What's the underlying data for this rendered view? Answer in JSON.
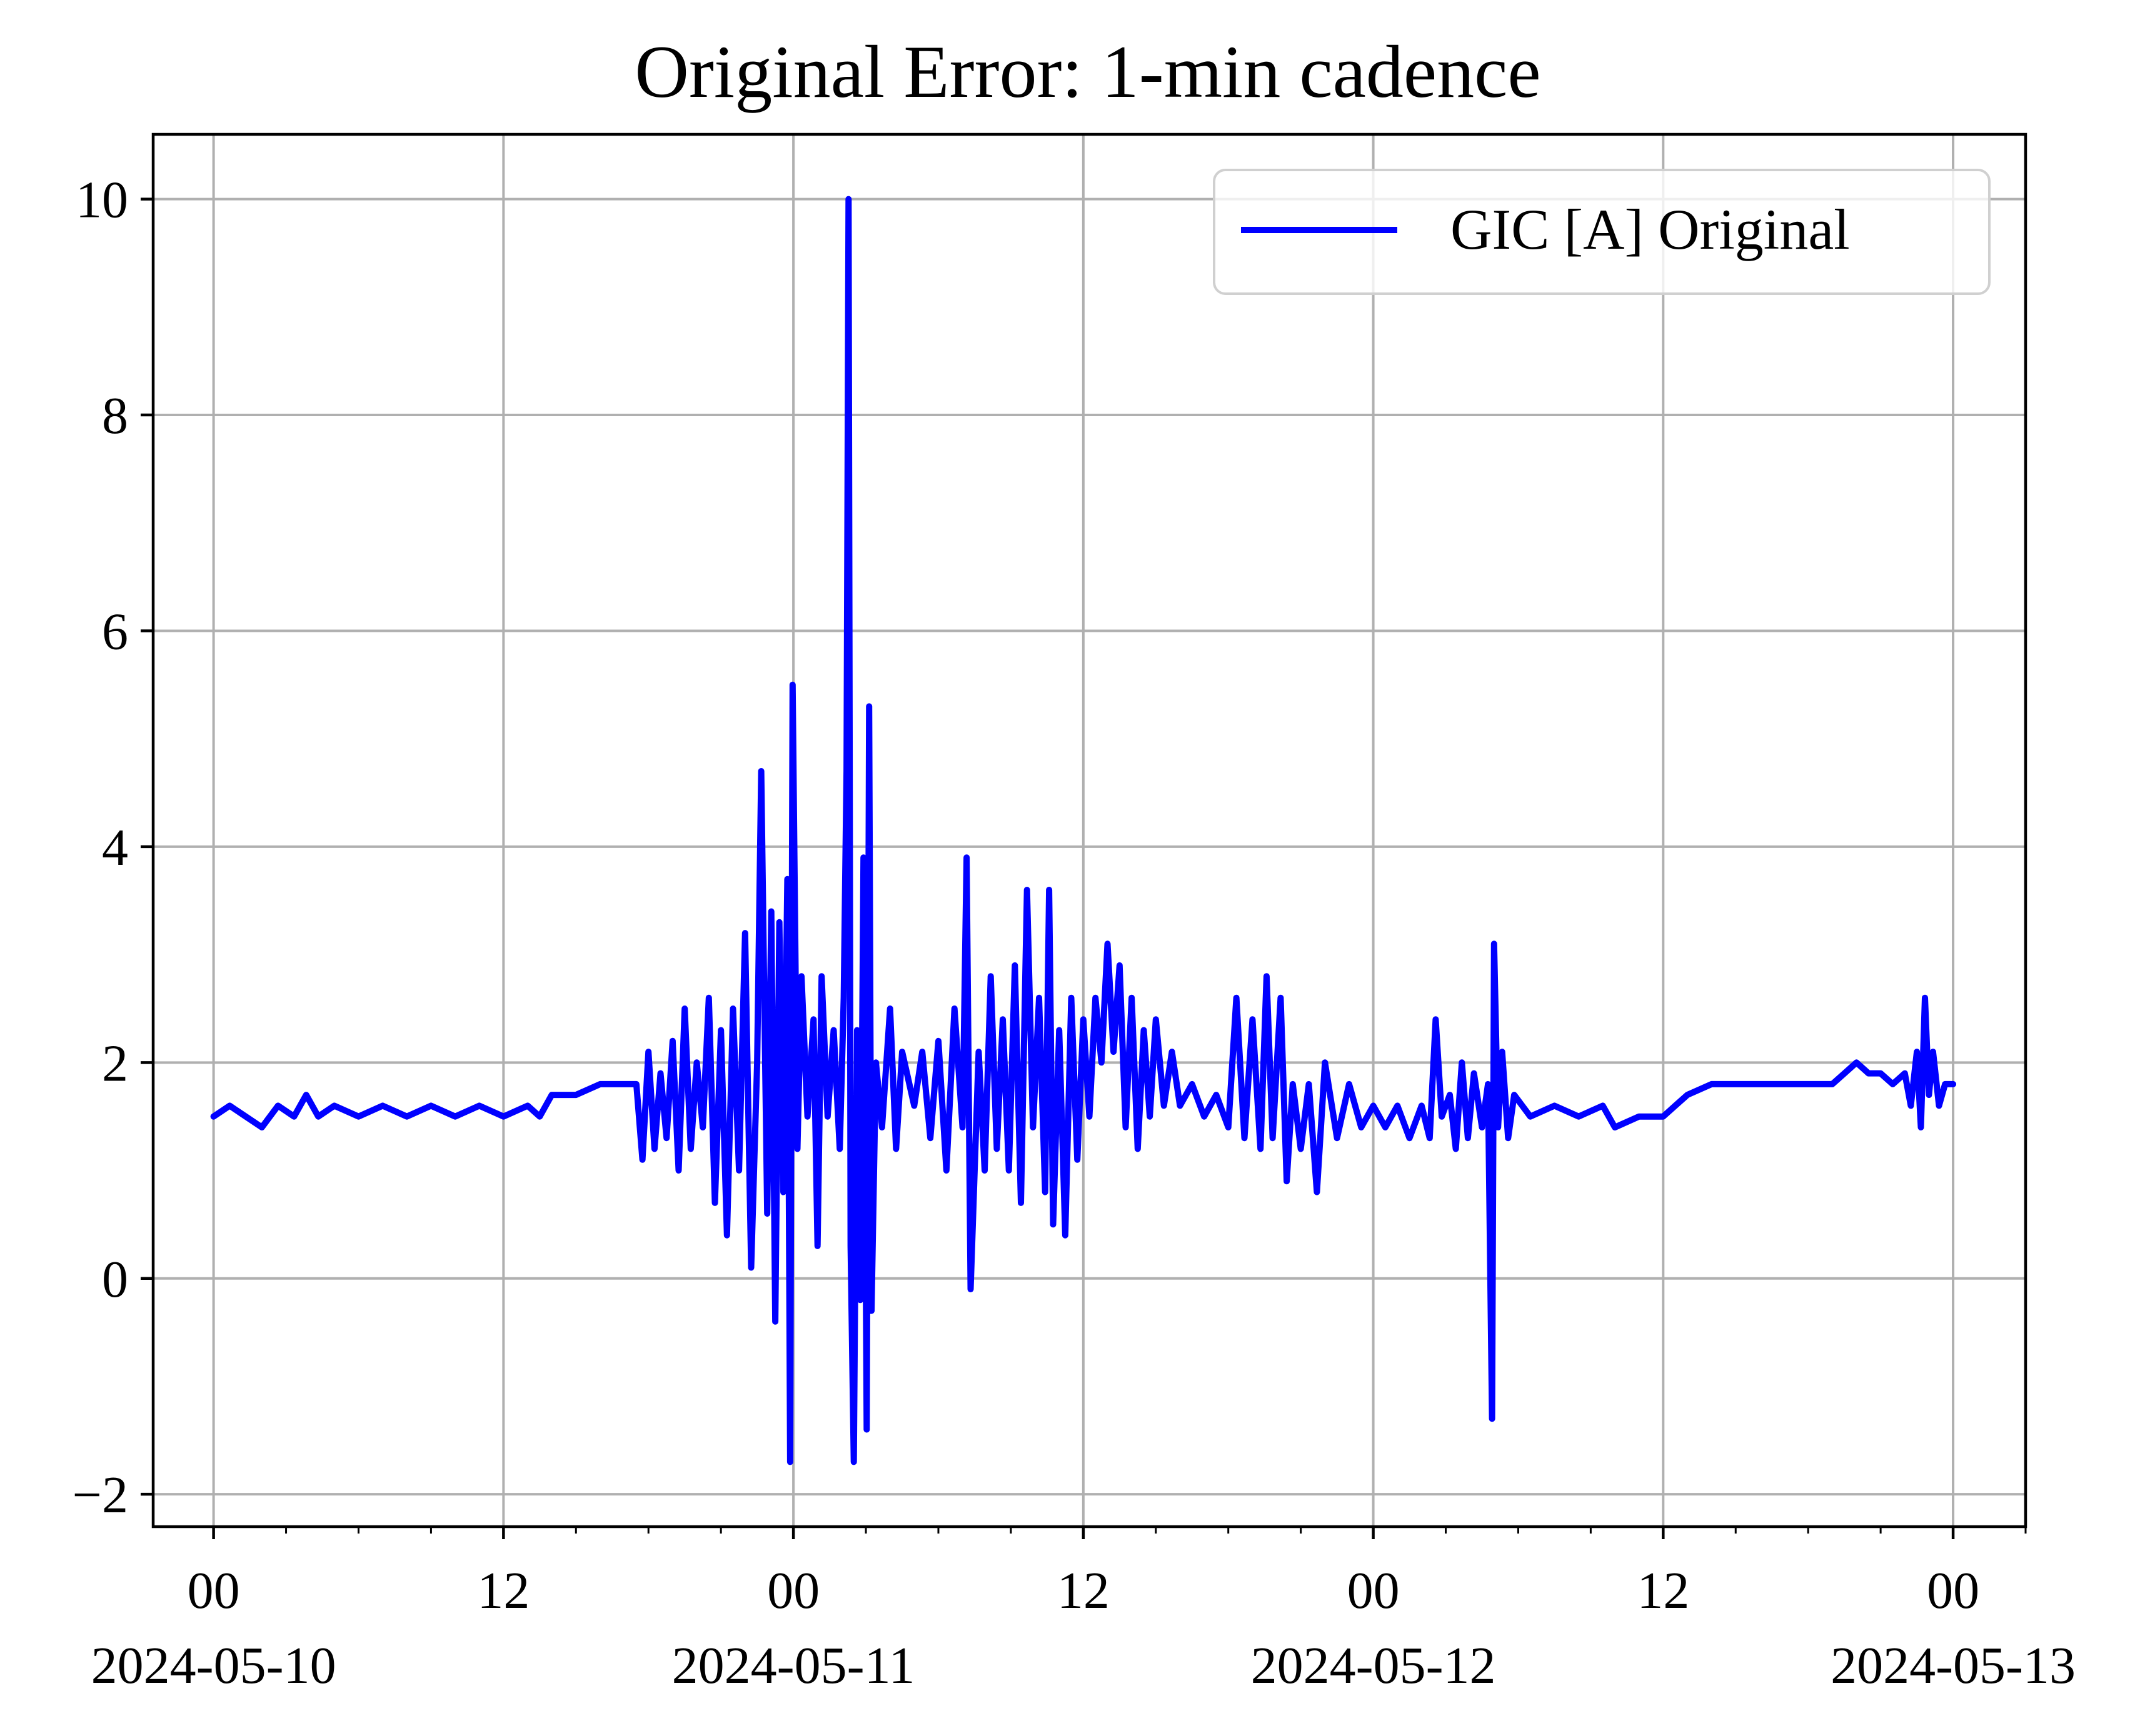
{
  "chart_data": {
    "type": "line",
    "title": "Original Error: 1-min cadence",
    "xlabel": "",
    "ylabel": "",
    "xlim": [
      "2024-05-09T21:30",
      "2024-05-13T03:00"
    ],
    "ylim": [
      -2.3,
      10.6
    ],
    "grid": true,
    "legend_position": "top-right",
    "x_ticks": [
      {
        "value": "2024-05-10T00:00",
        "label": "00",
        "date_label": "2024-05-10"
      },
      {
        "value": "2024-05-10T12:00",
        "label": "12",
        "date_label": ""
      },
      {
        "value": "2024-05-11T00:00",
        "label": "00",
        "date_label": "2024-05-11"
      },
      {
        "value": "2024-05-11T12:00",
        "label": "12",
        "date_label": ""
      },
      {
        "value": "2024-05-12T00:00",
        "label": "00",
        "date_label": "2024-05-12"
      },
      {
        "value": "2024-05-12T12:00",
        "label": "12",
        "date_label": ""
      },
      {
        "value": "2024-05-13T00:00",
        "label": "00",
        "date_label": "2024-05-13"
      }
    ],
    "y_ticks": [
      {
        "value": -2,
        "label": "−2"
      },
      {
        "value": 0,
        "label": "0"
      },
      {
        "value": 2,
        "label": "2"
      },
      {
        "value": 4,
        "label": "4"
      },
      {
        "value": 6,
        "label": "6"
      },
      {
        "value": 8,
        "label": "8"
      },
      {
        "value": 10,
        "label": "10"
      }
    ],
    "series": [
      {
        "name": "GIC [A] Original",
        "color": "#0000ff",
        "points": [
          [
            "2024-05-10T00:00",
            1.5
          ],
          [
            "2024-05-10T00:40",
            1.6
          ],
          [
            "2024-05-10T01:20",
            1.5
          ],
          [
            "2024-05-10T02:00",
            1.4
          ],
          [
            "2024-05-10T02:40",
            1.6
          ],
          [
            "2024-05-10T03:20",
            1.5
          ],
          [
            "2024-05-10T03:50",
            1.7
          ],
          [
            "2024-05-10T04:20",
            1.5
          ],
          [
            "2024-05-10T05:00",
            1.6
          ],
          [
            "2024-05-10T06:00",
            1.5
          ],
          [
            "2024-05-10T07:00",
            1.6
          ],
          [
            "2024-05-10T08:00",
            1.5
          ],
          [
            "2024-05-10T09:00",
            1.6
          ],
          [
            "2024-05-10T10:00",
            1.5
          ],
          [
            "2024-05-10T11:00",
            1.6
          ],
          [
            "2024-05-10T12:00",
            1.5
          ],
          [
            "2024-05-10T13:00",
            1.6
          ],
          [
            "2024-05-10T13:30",
            1.5
          ],
          [
            "2024-05-10T14:00",
            1.7
          ],
          [
            "2024-05-10T15:00",
            1.7
          ],
          [
            "2024-05-10T16:00",
            1.8
          ],
          [
            "2024-05-10T17:00",
            1.8
          ],
          [
            "2024-05-10T17:30",
            1.8
          ],
          [
            "2024-05-10T17:45",
            1.1
          ],
          [
            "2024-05-10T18:00",
            2.1
          ],
          [
            "2024-05-10T18:15",
            1.2
          ],
          [
            "2024-05-10T18:30",
            1.9
          ],
          [
            "2024-05-10T18:45",
            1.3
          ],
          [
            "2024-05-10T19:00",
            2.2
          ],
          [
            "2024-05-10T19:15",
            1.0
          ],
          [
            "2024-05-10T19:30",
            2.5
          ],
          [
            "2024-05-10T19:45",
            1.2
          ],
          [
            "2024-05-10T20:00",
            2.0
          ],
          [
            "2024-05-10T20:15",
            1.4
          ],
          [
            "2024-05-10T20:30",
            2.6
          ],
          [
            "2024-05-10T20:45",
            0.7
          ],
          [
            "2024-05-10T21:00",
            2.3
          ],
          [
            "2024-05-10T21:15",
            0.4
          ],
          [
            "2024-05-10T21:30",
            2.5
          ],
          [
            "2024-05-10T21:45",
            1.0
          ],
          [
            "2024-05-10T22:00",
            3.2
          ],
          [
            "2024-05-10T22:15",
            0.1
          ],
          [
            "2024-05-10T22:30",
            2.0
          ],
          [
            "2024-05-10T22:40",
            4.7
          ],
          [
            "2024-05-10T22:55",
            0.6
          ],
          [
            "2024-05-10T23:05",
            3.4
          ],
          [
            "2024-05-10T23:15",
            -0.4
          ],
          [
            "2024-05-10T23:25",
            3.3
          ],
          [
            "2024-05-10T23:35",
            0.8
          ],
          [
            "2024-05-10T23:45",
            3.7
          ],
          [
            "2024-05-10T23:52",
            -1.7
          ],
          [
            "2024-05-10T23:58",
            5.5
          ],
          [
            "2024-05-11T00:10",
            1.2
          ],
          [
            "2024-05-11T00:20",
            2.8
          ],
          [
            "2024-05-11T00:35",
            1.5
          ],
          [
            "2024-05-11T00:50",
            2.4
          ],
          [
            "2024-05-11T01:00",
            0.3
          ],
          [
            "2024-05-11T01:10",
            2.8
          ],
          [
            "2024-05-11T01:25",
            1.5
          ],
          [
            "2024-05-11T01:40",
            2.3
          ],
          [
            "2024-05-11T01:55",
            1.2
          ],
          [
            "2024-05-11T02:05",
            2.6
          ],
          [
            "2024-05-11T02:12",
            4.7
          ],
          [
            "2024-05-11T02:17",
            10.0
          ],
          [
            "2024-05-11T02:22",
            0.3
          ],
          [
            "2024-05-11T02:30",
            -1.7
          ],
          [
            "2024-05-11T02:38",
            2.3
          ],
          [
            "2024-05-11T02:46",
            -0.2
          ],
          [
            "2024-05-11T02:54",
            3.9
          ],
          [
            "2024-05-11T03:02",
            -1.4
          ],
          [
            "2024-05-11T03:08",
            5.3
          ],
          [
            "2024-05-11T03:14",
            -0.3
          ],
          [
            "2024-05-11T03:25",
            2.0
          ],
          [
            "2024-05-11T03:40",
            1.4
          ],
          [
            "2024-05-11T04:00",
            2.5
          ],
          [
            "2024-05-11T04:15",
            1.2
          ],
          [
            "2024-05-11T04:30",
            2.1
          ],
          [
            "2024-05-11T05:00",
            1.6
          ],
          [
            "2024-05-11T05:20",
            2.1
          ],
          [
            "2024-05-11T05:40",
            1.3
          ],
          [
            "2024-05-11T06:00",
            2.2
          ],
          [
            "2024-05-11T06:20",
            1.0
          ],
          [
            "2024-05-11T06:40",
            2.5
          ],
          [
            "2024-05-11T07:00",
            1.4
          ],
          [
            "2024-05-11T07:10",
            3.9
          ],
          [
            "2024-05-11T07:20",
            -0.1
          ],
          [
            "2024-05-11T07:40",
            2.1
          ],
          [
            "2024-05-11T07:55",
            1.0
          ],
          [
            "2024-05-11T08:10",
            2.8
          ],
          [
            "2024-05-11T08:25",
            1.2
          ],
          [
            "2024-05-11T08:40",
            2.4
          ],
          [
            "2024-05-11T08:55",
            1.0
          ],
          [
            "2024-05-11T09:10",
            2.9
          ],
          [
            "2024-05-11T09:25",
            0.7
          ],
          [
            "2024-05-11T09:40",
            3.6
          ],
          [
            "2024-05-11T09:55",
            1.4
          ],
          [
            "2024-05-11T10:10",
            2.6
          ],
          [
            "2024-05-11T10:25",
            0.8
          ],
          [
            "2024-05-11T10:35",
            3.6
          ],
          [
            "2024-05-11T10:45",
            0.5
          ],
          [
            "2024-05-11T11:00",
            2.3
          ],
          [
            "2024-05-11T11:15",
            0.4
          ],
          [
            "2024-05-11T11:30",
            2.6
          ],
          [
            "2024-05-11T11:45",
            1.1
          ],
          [
            "2024-05-11T12:00",
            2.4
          ],
          [
            "2024-05-11T12:15",
            1.5
          ],
          [
            "2024-05-11T12:30",
            2.6
          ],
          [
            "2024-05-11T12:45",
            2.0
          ],
          [
            "2024-05-11T13:00",
            3.1
          ],
          [
            "2024-05-11T13:15",
            2.1
          ],
          [
            "2024-05-11T13:30",
            2.9
          ],
          [
            "2024-05-11T13:45",
            1.4
          ],
          [
            "2024-05-11T14:00",
            2.6
          ],
          [
            "2024-05-11T14:15",
            1.2
          ],
          [
            "2024-05-11T14:30",
            2.3
          ],
          [
            "2024-05-11T14:45",
            1.5
          ],
          [
            "2024-05-11T15:00",
            2.4
          ],
          [
            "2024-05-11T15:20",
            1.6
          ],
          [
            "2024-05-11T15:40",
            2.1
          ],
          [
            "2024-05-11T16:00",
            1.6
          ],
          [
            "2024-05-11T16:30",
            1.8
          ],
          [
            "2024-05-11T17:00",
            1.5
          ],
          [
            "2024-05-11T17:30",
            1.7
          ],
          [
            "2024-05-11T18:00",
            1.4
          ],
          [
            "2024-05-11T18:20",
            2.6
          ],
          [
            "2024-05-11T18:40",
            1.3
          ],
          [
            "2024-05-11T19:00",
            2.4
          ],
          [
            "2024-05-11T19:20",
            1.2
          ],
          [
            "2024-05-11T19:35",
            2.8
          ],
          [
            "2024-05-11T19:50",
            1.3
          ],
          [
            "2024-05-11T20:10",
            2.6
          ],
          [
            "2024-05-11T20:25",
            0.9
          ],
          [
            "2024-05-11T20:40",
            1.8
          ],
          [
            "2024-05-11T21:00",
            1.2
          ],
          [
            "2024-05-11T21:20",
            1.8
          ],
          [
            "2024-05-11T21:40",
            0.8
          ],
          [
            "2024-05-11T22:00",
            2.0
          ],
          [
            "2024-05-11T22:30",
            1.3
          ],
          [
            "2024-05-11T23:00",
            1.8
          ],
          [
            "2024-05-11T23:30",
            1.4
          ],
          [
            "2024-05-12T00:00",
            1.6
          ],
          [
            "2024-05-12T00:30",
            1.4
          ],
          [
            "2024-05-12T01:00",
            1.6
          ],
          [
            "2024-05-12T01:30",
            1.3
          ],
          [
            "2024-05-12T02:00",
            1.6
          ],
          [
            "2024-05-12T02:20",
            1.3
          ],
          [
            "2024-05-12T02:35",
            2.4
          ],
          [
            "2024-05-12T02:50",
            1.5
          ],
          [
            "2024-05-12T03:10",
            1.7
          ],
          [
            "2024-05-12T03:25",
            1.2
          ],
          [
            "2024-05-12T03:40",
            2.0
          ],
          [
            "2024-05-12T03:55",
            1.3
          ],
          [
            "2024-05-12T04:10",
            1.9
          ],
          [
            "2024-05-12T04:30",
            1.4
          ],
          [
            "2024-05-12T04:45",
            1.8
          ],
          [
            "2024-05-12T04:55",
            -1.3
          ],
          [
            "2024-05-12T05:00",
            3.1
          ],
          [
            "2024-05-12T05:10",
            1.4
          ],
          [
            "2024-05-12T05:20",
            2.1
          ],
          [
            "2024-05-12T05:35",
            1.3
          ],
          [
            "2024-05-12T05:50",
            1.7
          ],
          [
            "2024-05-12T06:30",
            1.5
          ],
          [
            "2024-05-12T07:30",
            1.6
          ],
          [
            "2024-05-12T08:30",
            1.5
          ],
          [
            "2024-05-12T09:30",
            1.6
          ],
          [
            "2024-05-12T10:00",
            1.4
          ],
          [
            "2024-05-12T11:00",
            1.5
          ],
          [
            "2024-05-12T12:00",
            1.5
          ],
          [
            "2024-05-12T12:30",
            1.6
          ],
          [
            "2024-05-12T13:00",
            1.7
          ],
          [
            "2024-05-12T14:00",
            1.8
          ],
          [
            "2024-05-12T15:00",
            1.8
          ],
          [
            "2024-05-12T16:00",
            1.8
          ],
          [
            "2024-05-12T17:00",
            1.8
          ],
          [
            "2024-05-12T18:00",
            1.8
          ],
          [
            "2024-05-12T19:00",
            1.8
          ],
          [
            "2024-05-12T19:30",
            1.9
          ],
          [
            "2024-05-12T20:00",
            2.0
          ],
          [
            "2024-05-12T20:30",
            1.9
          ],
          [
            "2024-05-12T21:00",
            1.9
          ],
          [
            "2024-05-12T21:30",
            1.8
          ],
          [
            "2024-05-12T22:00",
            1.9
          ],
          [
            "2024-05-12T22:15",
            1.6
          ],
          [
            "2024-05-12T22:30",
            2.1
          ],
          [
            "2024-05-12T22:40",
            1.4
          ],
          [
            "2024-05-12T22:50",
            2.6
          ],
          [
            "2024-05-12T23:00",
            1.7
          ],
          [
            "2024-05-12T23:10",
            2.1
          ],
          [
            "2024-05-12T23:25",
            1.6
          ],
          [
            "2024-05-12T23:40",
            1.8
          ],
          [
            "2024-05-13T00:00",
            1.8
          ]
        ]
      }
    ]
  }
}
